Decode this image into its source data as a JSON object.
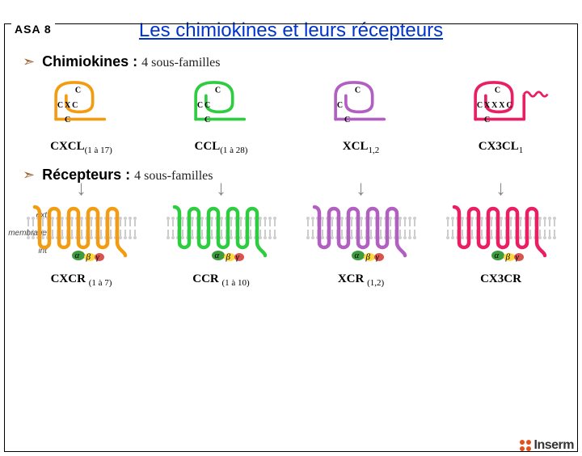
{
  "frame_label": "ASA 8",
  "title": "Les chimiokines et leurs récepteurs",
  "section_chemokines": {
    "label": "Chimiokines :",
    "sub": "4 sous-familles"
  },
  "section_receptors": {
    "label": "Récepteurs :",
    "sub": "4 sous-familles"
  },
  "side": {
    "ext": "ext",
    "membrane": "membrane",
    "int": "int"
  },
  "greek": {
    "a": "α",
    "b": "β",
    "g": "γ"
  },
  "logo": "Inserm",
  "colors": {
    "orange": "#f39c12",
    "green": "#2ecc40",
    "purple": "#b15fc1",
    "pink": "#e91e63",
    "membrane_light": "#cfcfcf",
    "membrane_dark": "#9a9a9a",
    "g_a": "#3f9b3f",
    "g_b": "#ffd83d",
    "g_g": "#d9534f",
    "arrow": "#888888"
  },
  "chemokines": [
    {
      "key": "cxcl",
      "color_key": "orange",
      "seq": "C X C",
      "label_main": "CXCL",
      "label_sub": "(1 à 17)"
    },
    {
      "key": "ccl",
      "color_key": "green",
      "seq": "C C",
      "label_main": "CCL",
      "label_sub": "(1 à 28)"
    },
    {
      "key": "xcl",
      "color_key": "purple",
      "seq": "C",
      "label_main": "XCL",
      "label_sub": "1,2"
    },
    {
      "key": "cx3cl",
      "color_key": "pink",
      "seq": "C X X X C",
      "label_main": "CX3CL",
      "label_sub": "1",
      "has_tail_coil": true
    }
  ],
  "receptors": [
    {
      "key": "cxcr",
      "color_key": "orange",
      "label_main": "CXCR",
      "label_sub": "(1 à 7)"
    },
    {
      "key": "ccr",
      "color_key": "green",
      "label_main": "CCR",
      "label_sub": "(1 à 10)"
    },
    {
      "key": "xcr",
      "color_key": "purple",
      "label_main": "XCR",
      "label_sub": "(1,2)"
    },
    {
      "key": "cx3cr",
      "color_key": "pink",
      "label_main": "CX3CR",
      "label_sub": ""
    }
  ]
}
